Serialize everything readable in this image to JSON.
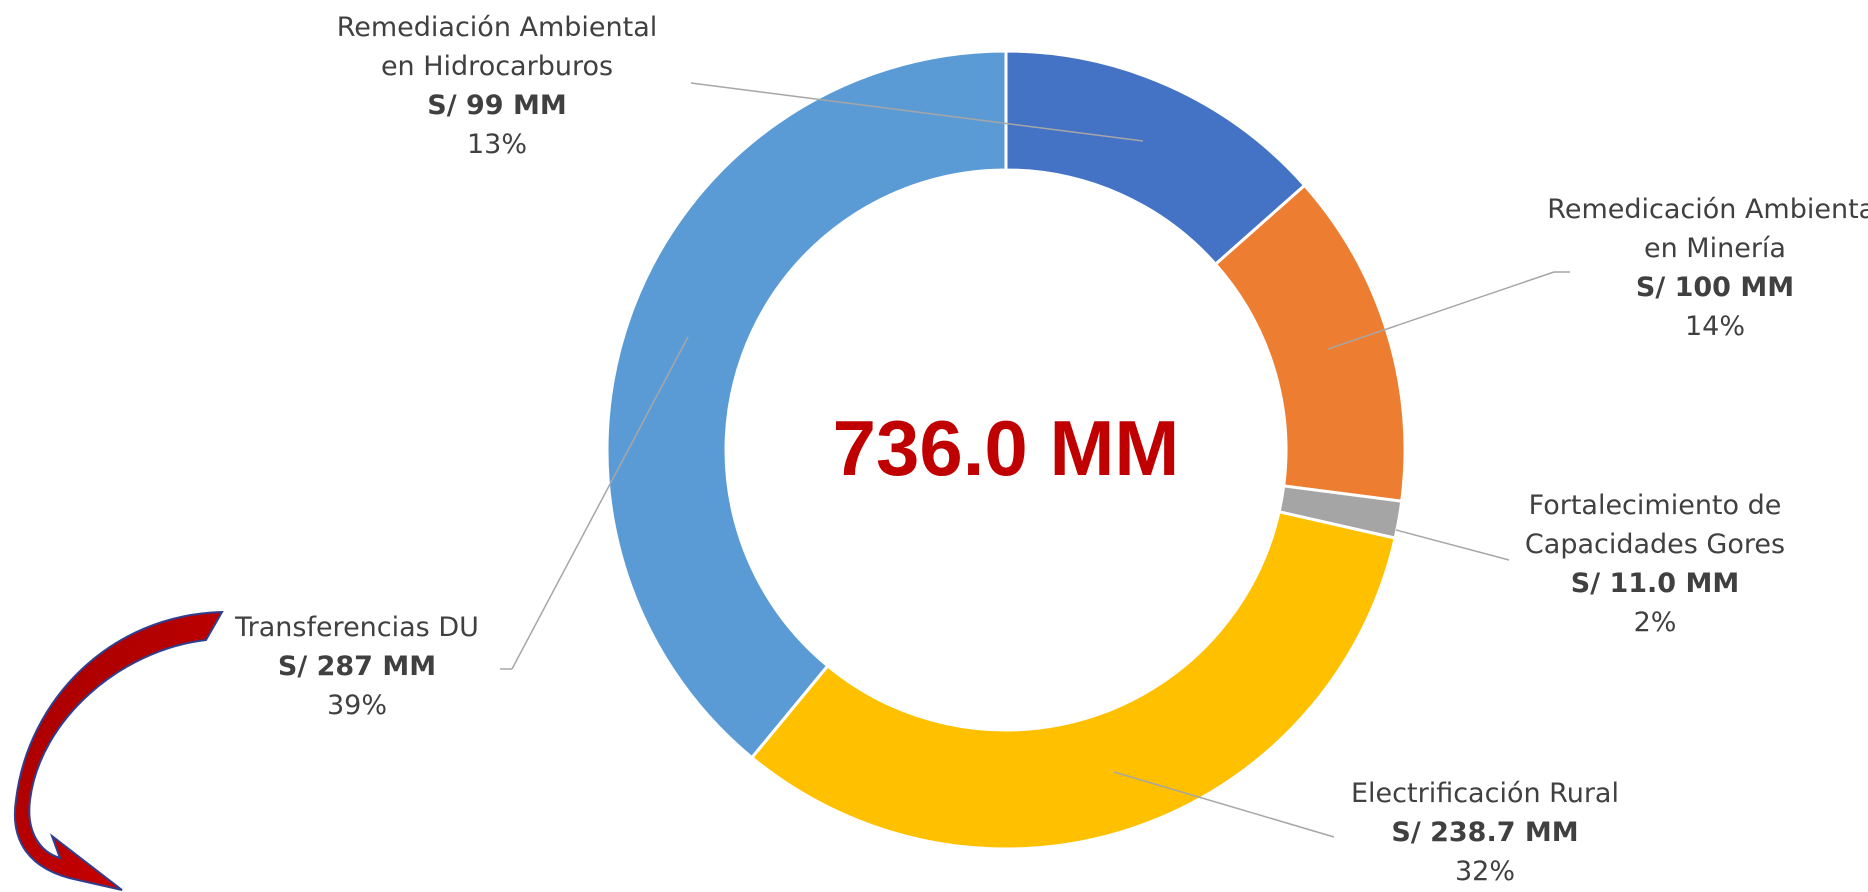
{
  "chart_data": {
    "type": "donut",
    "center_label": "736.0 MM",
    "categories": [
      "Remediación Ambiental en Hidrocarburos",
      "Remedicación Ambiental en Minería",
      "Fortalecimiento de Capacidades Gores",
      "Electrificación Rural",
      "Transferencias DU"
    ],
    "values": [
      99,
      100,
      11.0,
      238.7,
      287
    ],
    "value_labels": [
      "S/ 99 MM",
      "S/ 100 MM",
      "S/ 11.0 MM",
      "S/ 238.7 MM",
      "S/ 287 MM"
    ],
    "percent_labels": [
      "13%",
      "14%",
      "2%",
      "32%",
      "39%"
    ],
    "colors": [
      "#4472c4",
      "#ed7d31",
      "#a5a5a5",
      "#ffc000",
      "#5b9bd5"
    ]
  }
}
